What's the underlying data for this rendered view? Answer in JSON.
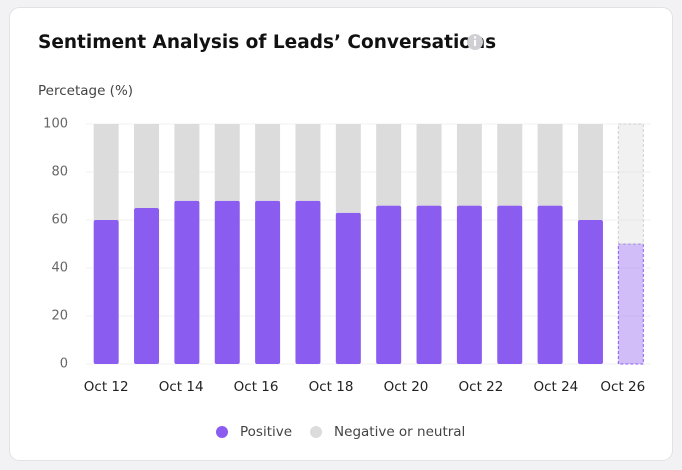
{
  "chart_data": {
    "type": "stacked_bar",
    "title": "Sentiment Analysis of Leads’ Conversations",
    "y_label": "Percetage (%)",
    "x_labels": [
      "Oct 12",
      "Oct 14",
      "Oct 16",
      "Oct 18",
      "Oct 20",
      "Oct 22",
      "Oct 24",
      "Oct 26"
    ],
    "series": [
      {
        "name": "Positive",
        "color": "#8b5cf0",
        "values": [
          60,
          65,
          68,
          68,
          68,
          68,
          63,
          66,
          66,
          66,
          66,
          66,
          60,
          50
        ]
      },
      {
        "name": "Negative or neutral",
        "color": "#dcdcdc",
        "values": [
          40,
          35,
          32,
          32,
          32,
          32,
          37,
          34,
          34,
          34,
          34,
          34,
          40,
          50
        ]
      }
    ],
    "ylim": [
      0,
      100
    ],
    "yticks": [
      0,
      20,
      40,
      60,
      80,
      100
    ],
    "grid": true
  }
}
